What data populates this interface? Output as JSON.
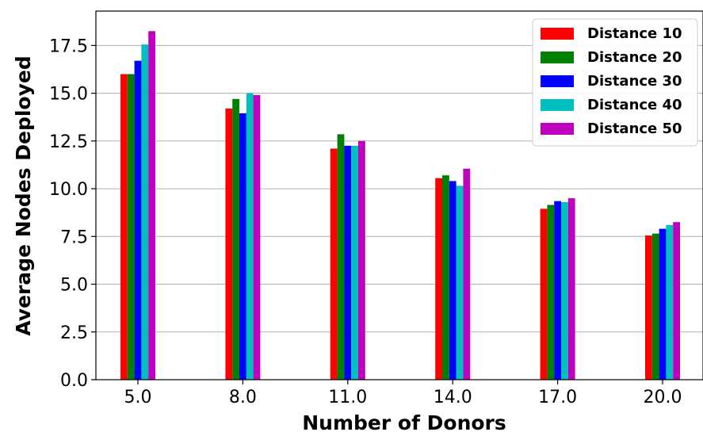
{
  "chart_data": {
    "type": "bar",
    "title": "",
    "xlabel": "Number of Donors",
    "ylabel": "Average Nodes Deployed",
    "categories": [
      "5.0",
      "8.0",
      "11.0",
      "14.0",
      "17.0",
      "20.0"
    ],
    "yticks": [
      "0.0",
      "2.5",
      "5.0",
      "7.5",
      "10.0",
      "12.5",
      "15.0",
      "17.5"
    ],
    "ylim": [
      0,
      19.3
    ],
    "grid": "horizontal",
    "legend_position": "top-right",
    "series": [
      {
        "name": "Distance 10",
        "color": "#ff0000",
        "values": [
          16.0,
          14.2,
          12.1,
          10.55,
          8.95,
          7.55
        ]
      },
      {
        "name": "Distance 20",
        "color": "#008000",
        "values": [
          16.0,
          14.7,
          12.85,
          10.7,
          9.15,
          7.65
        ]
      },
      {
        "name": "Distance 30",
        "color": "#0000ff",
        "values": [
          16.7,
          13.95,
          12.25,
          10.4,
          9.35,
          7.9
        ]
      },
      {
        "name": "Distance 40",
        "color": "#00bfbf",
        "values": [
          17.55,
          15.0,
          12.25,
          10.15,
          9.3,
          8.1
        ]
      },
      {
        "name": "Distance 50",
        "color": "#bf00bf",
        "values": [
          18.25,
          14.9,
          12.5,
          11.05,
          9.5,
          8.25
        ]
      }
    ]
  }
}
